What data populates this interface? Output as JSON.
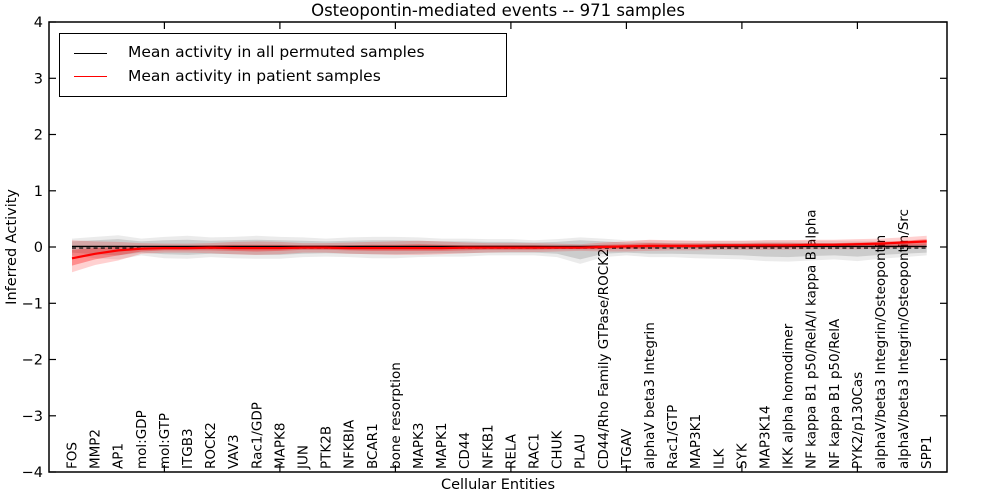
{
  "figure": {
    "background": "#ffffff"
  },
  "legend": {
    "entries": [
      {
        "label": "Mean activity in all permuted samples",
        "color": "#000000"
      },
      {
        "label": "Mean activity in patient samples",
        "color": "#ff0000"
      }
    ]
  },
  "chart_data": {
    "type": "line",
    "title": "Osteopontin-mediated events -- 971 samples",
    "xlabel": "Cellular Entities",
    "ylabel": "Inferred Activity",
    "ylim": [
      -4,
      4
    ],
    "grid": false,
    "legend_position": "upper left",
    "ytick_values": [
      4,
      3,
      2,
      1,
      0,
      -1,
      -2,
      -3,
      -4
    ],
    "ytick_labels": [
      "4",
      "3",
      "2",
      "1",
      "0",
      "−1",
      "−2",
      "−3",
      "−4"
    ],
    "xtick_at_category_index": [
      4,
      9,
      14,
      19,
      24,
      29,
      34
    ],
    "categories": [
      "FOS",
      "MMP2",
      "AP1",
      "mol:GDP",
      "mol:GTP",
      "ITGB3",
      "ROCK2",
      "VAV3",
      "Rac1/GDP",
      "MAPK8",
      "JUN",
      "PTK2B",
      "NFKBIA",
      "BCAR1",
      "bone resorption",
      "MAPK3",
      "MAPK1",
      "CD44",
      "NFKB1",
      "RELA",
      "RAC1",
      "CHUK",
      "PLAU",
      "CD44/Rho Family GTPase/ROCK2",
      "ITGAV",
      "alphaV beta3 Integrin",
      "Rac1/GTP",
      "MAP3K1",
      "ILK",
      "SYK",
      "MAP3K14",
      "IKK alpha homodimer",
      "NF kappa B1 p50/RelA/I kappa B alpha",
      "NF kappa B1 p50/RelA",
      "PYK2/p130Cas",
      "alphaV/beta3 Integrin/Osteopontin",
      "alphaV/beta3 Integrin/Osteopontin/Src",
      "SPP1"
    ],
    "series": [
      {
        "name": "Mean activity in all permuted samples",
        "color": "#000000",
        "style": "solid",
        "width": 1.4,
        "values": [
          0.01,
          0.01,
          0.01,
          0.01,
          0.01,
          0.01,
          0.01,
          0.01,
          0.01,
          0.01,
          0.01,
          0.01,
          0.01,
          0.01,
          0.01,
          0.01,
          0.01,
          0.01,
          0.01,
          0.01,
          0.01,
          0.01,
          0.01,
          0.01,
          0.01,
          0.01,
          0.01,
          0.01,
          0.01,
          0.01,
          0.01,
          0.01,
          0.01,
          0.01,
          0.01,
          0.01,
          0.01,
          0.01
        ]
      },
      {
        "name": "permuted-mean-dashed-overlay",
        "color": "#000000",
        "style": "dashed",
        "width": 1.1,
        "values": [
          -0.02,
          -0.02,
          -0.02,
          -0.02,
          -0.02,
          -0.02,
          -0.02,
          -0.02,
          -0.02,
          -0.02,
          -0.02,
          -0.02,
          -0.02,
          -0.02,
          -0.02,
          -0.02,
          -0.02,
          -0.02,
          -0.02,
          -0.02,
          -0.02,
          -0.02,
          -0.02,
          -0.02,
          -0.02,
          -0.02,
          -0.02,
          -0.02,
          -0.02,
          -0.02,
          -0.02,
          -0.02,
          -0.02,
          -0.02,
          -0.02,
          -0.02,
          -0.02,
          -0.02
        ]
      },
      {
        "name": "Mean activity in patient samples",
        "color": "#ff0000",
        "style": "solid",
        "width": 2.2,
        "values": [
          -0.2,
          -0.12,
          -0.06,
          -0.03,
          -0.02,
          -0.02,
          -0.01,
          -0.02,
          -0.02,
          -0.02,
          -0.01,
          -0.01,
          -0.02,
          -0.02,
          -0.02,
          -0.02,
          -0.02,
          -0.01,
          -0.01,
          -0.01,
          -0.01,
          -0.01,
          -0.01,
          0.0,
          0.01,
          0.02,
          0.02,
          0.02,
          0.03,
          0.03,
          0.03,
          0.03,
          0.04,
          0.04,
          0.05,
          0.06,
          0.08,
          0.1
        ]
      }
    ],
    "bands": [
      {
        "name": "permuted-band-outer",
        "color": "#000000",
        "opacity": 0.08,
        "upper": [
          0.15,
          0.18,
          0.21,
          0.15,
          0.18,
          0.2,
          0.17,
          0.18,
          0.2,
          0.18,
          0.17,
          0.15,
          0.17,
          0.18,
          0.18,
          0.17,
          0.15,
          0.15,
          0.14,
          0.14,
          0.12,
          0.14,
          0.17,
          0.15,
          0.12,
          0.12,
          0.11,
          0.11,
          0.11,
          0.11,
          0.12,
          0.12,
          0.11,
          0.11,
          0.11,
          0.11,
          0.09,
          0.09
        ],
        "lower": [
          -0.15,
          -0.2,
          -0.22,
          -0.15,
          -0.2,
          -0.21,
          -0.18,
          -0.2,
          -0.21,
          -0.21,
          -0.18,
          -0.17,
          -0.18,
          -0.2,
          -0.2,
          -0.18,
          -0.17,
          -0.17,
          -0.15,
          -0.15,
          -0.15,
          -0.18,
          -0.3,
          -0.18,
          -0.15,
          -0.18,
          -0.18,
          -0.2,
          -0.21,
          -0.22,
          -0.25,
          -0.26,
          -0.24,
          -0.22,
          -0.25,
          -0.21,
          -0.18,
          -0.15
        ]
      },
      {
        "name": "permuted-band-inner",
        "color": "#000000",
        "opacity": 0.13,
        "upper": [
          0.1,
          0.12,
          0.14,
          0.1,
          0.12,
          0.13,
          0.11,
          0.12,
          0.13,
          0.12,
          0.11,
          0.1,
          0.11,
          0.12,
          0.12,
          0.11,
          0.1,
          0.1,
          0.09,
          0.09,
          0.08,
          0.09,
          0.12,
          0.1,
          0.08,
          0.08,
          0.07,
          0.07,
          0.07,
          0.07,
          0.08,
          0.08,
          0.07,
          0.07,
          0.07,
          0.07,
          0.06,
          0.06
        ],
        "lower": [
          -0.1,
          -0.13,
          -0.15,
          -0.1,
          -0.13,
          -0.14,
          -0.12,
          -0.13,
          -0.14,
          -0.14,
          -0.12,
          -0.11,
          -0.12,
          -0.13,
          -0.13,
          -0.12,
          -0.11,
          -0.11,
          -0.1,
          -0.1,
          -0.1,
          -0.12,
          -0.22,
          -0.12,
          -0.1,
          -0.12,
          -0.12,
          -0.13,
          -0.14,
          -0.15,
          -0.17,
          -0.18,
          -0.16,
          -0.15,
          -0.17,
          -0.14,
          -0.12,
          -0.1
        ]
      },
      {
        "name": "patient-band-outer",
        "color": "#ff0000",
        "opacity": 0.18,
        "upper": [
          0.12,
          0.1,
          0.09,
          0.07,
          0.06,
          0.06,
          0.07,
          0.09,
          0.1,
          0.09,
          0.07,
          0.07,
          0.08,
          0.09,
          0.1,
          0.11,
          0.1,
          0.08,
          0.07,
          0.07,
          0.07,
          0.06,
          0.05,
          0.08,
          0.1,
          0.13,
          0.12,
          0.11,
          0.11,
          0.11,
          0.12,
          0.12,
          0.13,
          0.13,
          0.14,
          0.15,
          0.17,
          0.2
        ],
        "lower": [
          -0.45,
          -0.32,
          -0.24,
          -0.12,
          -0.1,
          -0.1,
          -0.11,
          -0.13,
          -0.14,
          -0.13,
          -0.1,
          -0.1,
          -0.12,
          -0.13,
          -0.14,
          -0.14,
          -0.13,
          -0.11,
          -0.1,
          -0.09,
          -0.09,
          -0.08,
          -0.07,
          -0.08,
          -0.08,
          -0.07,
          -0.06,
          -0.06,
          -0.05,
          -0.05,
          -0.05,
          -0.05,
          -0.04,
          -0.04,
          -0.04,
          -0.03,
          -0.02,
          -0.02
        ]
      },
      {
        "name": "patient-band-inner",
        "color": "#ff0000",
        "opacity": 0.32,
        "upper": [
          -0.05,
          -0.02,
          0.0,
          0.02,
          0.02,
          0.02,
          0.03,
          0.04,
          0.04,
          0.04,
          0.03,
          0.03,
          0.03,
          0.04,
          0.04,
          0.05,
          0.04,
          0.03,
          0.03,
          0.03,
          0.03,
          0.02,
          0.02,
          0.04,
          0.05,
          0.07,
          0.06,
          0.06,
          0.06,
          0.06,
          0.07,
          0.07,
          0.07,
          0.07,
          0.08,
          0.09,
          0.11,
          0.14
        ],
        "lower": [
          -0.33,
          -0.22,
          -0.15,
          -0.08,
          -0.06,
          -0.06,
          -0.06,
          -0.07,
          -0.08,
          -0.07,
          -0.05,
          -0.05,
          -0.06,
          -0.07,
          -0.07,
          -0.07,
          -0.07,
          -0.06,
          -0.05,
          -0.05,
          -0.05,
          -0.04,
          -0.04,
          -0.04,
          -0.03,
          -0.03,
          -0.02,
          -0.02,
          -0.01,
          -0.01,
          -0.01,
          -0.01,
          0.0,
          0.0,
          0.0,
          0.01,
          0.02,
          0.03
        ]
      }
    ]
  }
}
